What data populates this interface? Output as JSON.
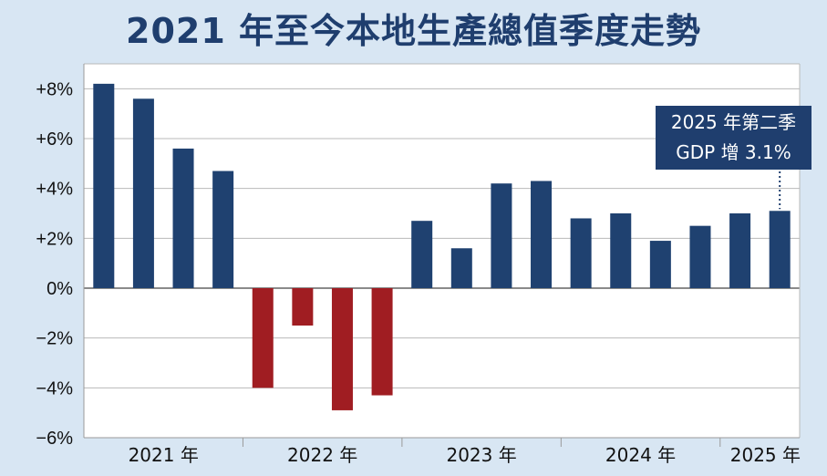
{
  "chart_data": {
    "type": "bar",
    "title": "2021 年至今本地生產總值季度走勢",
    "categories": [
      "2021 Q1",
      "2021 Q2",
      "2021 Q3",
      "2021 Q4",
      "2022 Q1",
      "2022 Q2",
      "2022 Q3",
      "2022 Q4",
      "2023 Q1",
      "2023 Q2",
      "2023 Q3",
      "2023 Q4",
      "2024 Q1",
      "2024 Q2",
      "2024 Q3",
      "2024 Q4",
      "2025 Q1",
      "2025 Q2"
    ],
    "values": [
      8.2,
      7.6,
      5.6,
      4.7,
      -4.0,
      -1.5,
      -4.9,
      -4.3,
      2.7,
      1.6,
      4.2,
      4.3,
      2.8,
      3.0,
      1.9,
      2.5,
      3.0,
      3.1
    ],
    "year_labels": [
      "2021 年",
      "2022 年",
      "2023 年",
      "2024 年",
      "2025 年"
    ],
    "ytick_labels": [
      "+8%",
      "+6%",
      "+4%",
      "+2%",
      "0%",
      "−2%",
      "−4%",
      "−6%"
    ],
    "ytick_values": [
      8,
      6,
      4,
      2,
      0,
      -2,
      -4,
      -6
    ],
    "ylim": [
      -6,
      9
    ],
    "grid": true,
    "positive_color": "#1f4170",
    "negative_color": "#a01d22",
    "annotation": {
      "line1": "2025 年第二季",
      "line2": "GDP 增 3.1%",
      "target_index": 17
    }
  }
}
